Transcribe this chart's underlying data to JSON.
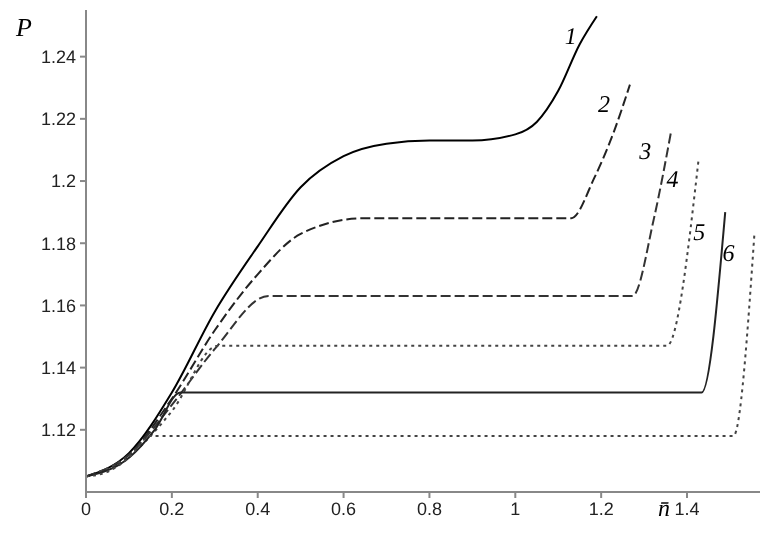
{
  "chart_data": {
    "type": "line",
    "xlabel": "n̄",
    "ylabel": "P",
    "xlim": [
      0,
      1.57
    ],
    "xticks": [
      0,
      0.2,
      0.4,
      0.6,
      0.8,
      1,
      1.2,
      1.4
    ],
    "ylim": [
      1.1,
      1.255
    ],
    "yticks": [
      1.12,
      1.14,
      1.16,
      1.18,
      1.2,
      1.22,
      1.24
    ],
    "grid": false,
    "legend": false,
    "marker": "none",
    "series": [
      {
        "name": "1",
        "color": "#000000",
        "line_style": "solid",
        "x": [
          0,
          0.1,
          0.2,
          0.3,
          0.4,
          0.5,
          0.6,
          0.7,
          0.8,
          0.9,
          1.0,
          1.05,
          1.1,
          1.15,
          1.19
        ],
        "values": [
          1.105,
          1.1125,
          1.132,
          1.158,
          1.179,
          1.198,
          1.208,
          1.212,
          1.213,
          1.213,
          1.215,
          1.219,
          1.229,
          1.244,
          1.253
        ]
      },
      {
        "name": "2",
        "color": "#222222",
        "line_style": "dashed",
        "x": [
          0,
          0.1,
          0.2,
          0.3,
          0.4,
          0.5,
          0.644,
          1.13,
          1.184,
          1.23,
          1.267
        ],
        "values": [
          1.105,
          1.112,
          1.13,
          1.152,
          1.17,
          1.183,
          1.188,
          1.188,
          1.201,
          1.216,
          1.231
        ]
      },
      {
        "name": "3",
        "color": "#333333",
        "line_style": "dashed",
        "x": [
          0,
          0.1,
          0.2,
          0.3,
          0.425,
          1.273,
          1.323,
          1.363
        ],
        "values": [
          1.105,
          1.112,
          1.128,
          1.146,
          1.163,
          1.163,
          1.188,
          1.216
        ]
      },
      {
        "name": "4",
        "color": "#444444",
        "line_style": "dotted",
        "x": [
          0,
          0.1,
          0.2,
          0.307,
          1.353,
          1.427
        ],
        "values": [
          1.105,
          1.1115,
          1.126,
          1.147,
          1.147,
          1.207
        ]
      },
      {
        "name": "5",
        "color": "#222222",
        "line_style": "solid",
        "x": [
          0,
          0.1,
          0.16,
          0.22,
          1.434,
          1.489
        ],
        "values": [
          1.105,
          1.111,
          1.12,
          1.132,
          1.132,
          1.19
        ]
      },
      {
        "name": "6",
        "color": "#444444",
        "line_style": "dotted",
        "x": [
          0,
          0.05,
          0.1,
          0.15,
          1.508,
          1.557
        ],
        "values": [
          1.105,
          1.1065,
          1.111,
          1.118,
          1.118,
          1.183
        ]
      }
    ]
  }
}
